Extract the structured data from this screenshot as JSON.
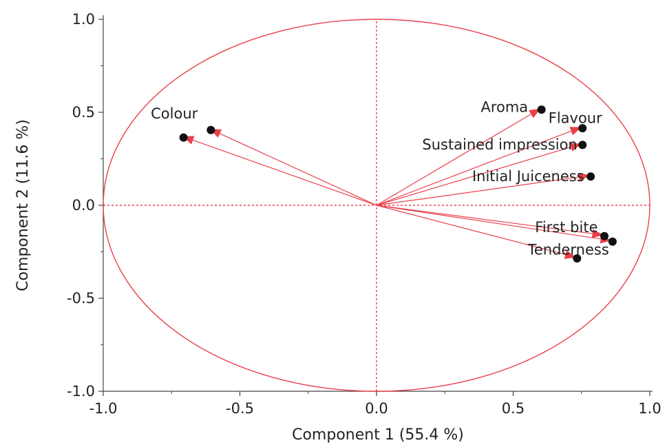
{
  "chart_data": {
    "type": "scatter",
    "subtype": "pca-loading-plot",
    "xlabel": "Component 1  (55.4 %)",
    "ylabel": "Component 2  (11.6 %)",
    "xlim": [
      -1.0,
      1.0
    ],
    "ylim": [
      -1.0,
      1.0
    ],
    "xticks": [
      "-1.0",
      "-0.5",
      "0.0",
      "0.5",
      "1.0"
    ],
    "yticks": [
      "-1.0",
      "-0.5",
      "0.0",
      "0.5",
      "1.0"
    ],
    "grid": false,
    "unit_circle": true,
    "reference_lines": [
      0,
      0
    ],
    "colors": {
      "accent": "#e8404a",
      "point": "#111111",
      "axis": "#444444"
    },
    "points": [
      {
        "label": "Colour",
        "x": -0.71,
        "y": 0.37
      },
      {
        "label": "Colour",
        "x": -0.61,
        "y": 0.41
      },
      {
        "label": "Aroma",
        "x": 0.6,
        "y": 0.52
      },
      {
        "label": "Flavour",
        "x": 0.75,
        "y": 0.42
      },
      {
        "label": "Sustained impression",
        "x": 0.75,
        "y": 0.33
      },
      {
        "label": "Initial Juiceness",
        "x": 0.78,
        "y": 0.16
      },
      {
        "label": "First bite",
        "x": 0.83,
        "y": -0.16
      },
      {
        "label": "First bite",
        "x": 0.86,
        "y": -0.19
      },
      {
        "label": "Tenderness",
        "x": 0.73,
        "y": -0.28
      }
    ],
    "annotations": [
      "Colour",
      "Aroma",
      "Flavour",
      "Sustained impression",
      "Initial Juiceness",
      "First bite",
      "Tenderness"
    ]
  }
}
